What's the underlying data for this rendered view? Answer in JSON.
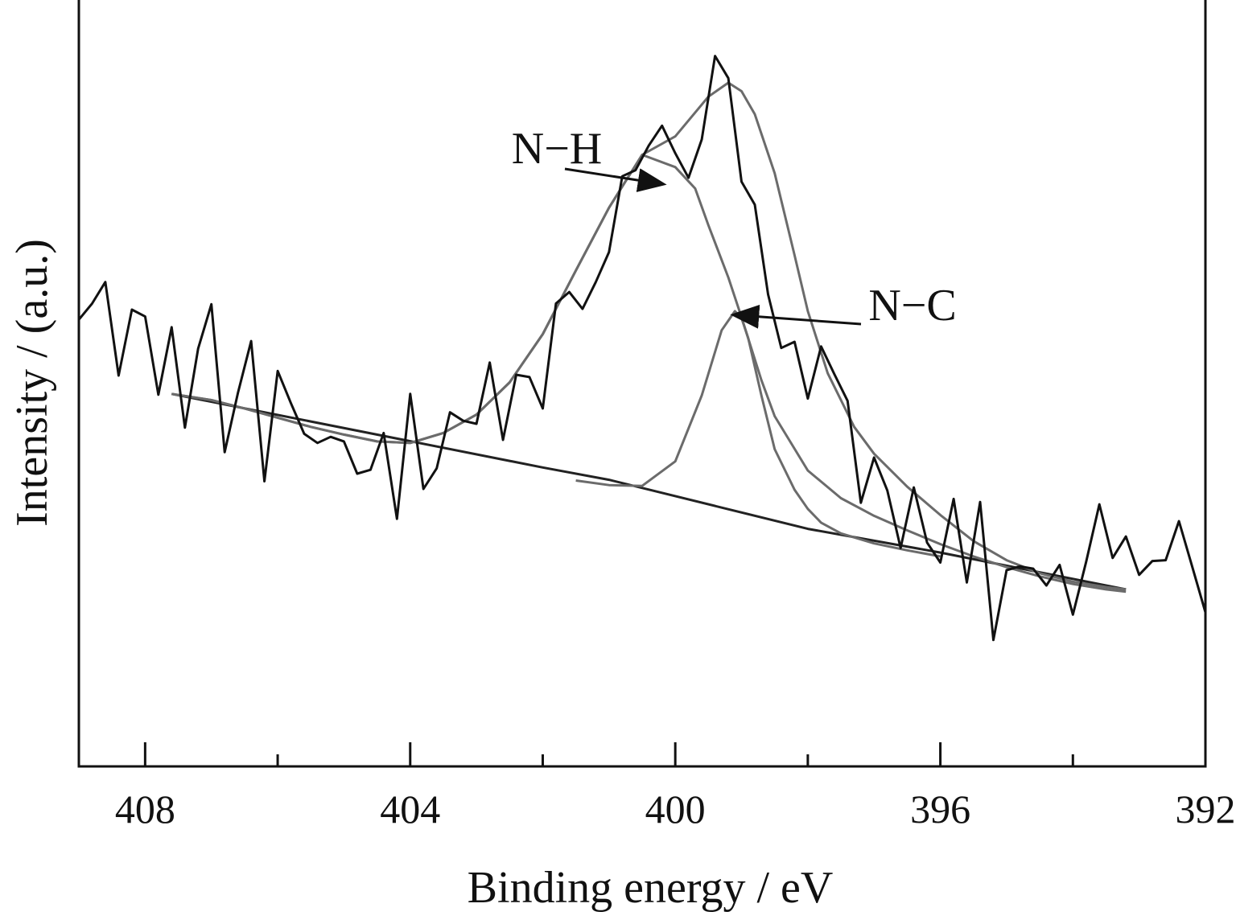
{
  "chart_data": {
    "type": "line",
    "title": "",
    "xlabel": "Binding energy / eV",
    "ylabel": "Intensity / (a.u.)",
    "xlim": [
      409,
      392
    ],
    "x_reversed": true,
    "ylim": [
      0,
      100
    ],
    "y_ticks_shown": false,
    "grid": false,
    "legend": "none",
    "x_ticks": [
      408,
      404,
      400,
      396,
      392
    ],
    "x_minor_ticks": [
      406,
      402,
      398,
      394
    ],
    "colors": {
      "raw": "#111111",
      "fit": "#6b6b6b",
      "frame": "#111111"
    },
    "series": [
      {
        "role": "raw",
        "x": [
          409.0,
          408.8,
          408.6,
          408.4,
          408.2,
          408.0,
          407.8,
          407.6,
          407.4,
          407.2,
          407.0,
          406.8,
          406.6,
          406.4,
          406.2,
          406.0,
          405.8,
          405.6,
          405.4,
          405.2,
          405.0,
          404.8,
          404.6,
          404.4,
          404.2,
          404.0,
          403.8,
          403.6,
          403.4,
          403.2,
          403.0,
          402.8,
          402.6,
          402.4,
          402.2,
          402.0,
          401.8,
          401.6,
          401.4,
          401.2,
          401.0,
          400.8,
          400.6,
          400.4,
          400.2,
          400.0,
          399.8,
          399.6,
          399.4,
          399.2,
          399.0,
          398.8,
          398.6,
          398.4,
          398.2,
          398.0,
          397.8,
          397.6,
          397.4,
          397.2,
          397.0,
          396.8,
          396.6,
          396.4,
          396.2,
          396.0,
          395.8,
          395.6,
          395.4,
          395.2,
          395.0,
          394.8,
          394.6,
          394.4,
          394.2,
          394.0,
          393.8,
          393.6,
          393.4,
          393.2,
          393.0,
          392.8,
          392.6,
          392.4,
          392.2,
          392.0
        ],
        "y": [
          58.3,
          60.4,
          63.2,
          51.0,
          59.6,
          58.7,
          48.5,
          57.3,
          44.2,
          54.5,
          60.3,
          41.0,
          48.7,
          55.5,
          37.2,
          51.6,
          47.4,
          43.4,
          42.2,
          43.0,
          42.4,
          38.2,
          38.7,
          43.5,
          32.3,
          48.6,
          36.2,
          38.9,
          46.2,
          45.1,
          44.7,
          52.7,
          42.6,
          51.1,
          50.8,
          46.7,
          60.4,
          61.9,
          59.7,
          63.2,
          67.1,
          77.0,
          77.8,
          81.0,
          83.6,
          80.0,
          76.8,
          81.8,
          92.7,
          89.8,
          76.3,
          73.3,
          61.6,
          54.6,
          55.4,
          48.0,
          54.8,
          51.2,
          47.7,
          34.4,
          40.3,
          36.0,
          28.5,
          36.4,
          29.2,
          26.6,
          34.9,
          24.0,
          34.5,
          16.5,
          25.6,
          26.1,
          25.8,
          23.6,
          26.3,
          19.8,
          26.7,
          34.2,
          27.2,
          30.0,
          25.0,
          26.8,
          26.9,
          32.0,
          26.1,
          20.1
        ]
      },
      {
        "role": "envelope",
        "x": [
          407.6,
          407.0,
          406.5,
          406.0,
          405.5,
          405.0,
          404.5,
          404.0,
          403.5,
          403.0,
          402.5,
          402.0,
          401.5,
          401.0,
          400.5,
          400.0,
          399.5,
          399.2,
          399.0,
          398.8,
          398.5,
          398.2,
          398.0,
          397.7,
          397.3,
          397.0,
          396.5,
          396.0,
          395.5,
          395.0,
          394.5,
          394.0,
          393.5,
          393.2
        ],
        "y": [
          48.6,
          47.8,
          46.7,
          45.5,
          44.3,
          43.3,
          42.4,
          42.2,
          43.5,
          45.9,
          50.1,
          56.4,
          64.7,
          72.9,
          79.8,
          82.2,
          87.4,
          89.2,
          88.1,
          85.1,
          77.4,
          66.7,
          59.4,
          51.3,
          44.3,
          40.8,
          36.5,
          32.8,
          29.4,
          26.9,
          25.2,
          24.1,
          23.4,
          23.1
        ]
      },
      {
        "role": "component",
        "label": "N−H",
        "x": [
          407.6,
          407.0,
          406.5,
          406.0,
          405.5,
          405.0,
          404.5,
          404.0,
          403.5,
          403.0,
          402.5,
          402.0,
          401.5,
          401.0,
          400.5,
          400.0,
          399.7,
          399.5,
          399.2,
          399.0,
          398.7,
          398.5,
          398.0,
          397.5,
          397.0,
          396.5,
          396.0,
          395.5,
          395.0,
          394.5,
          394.0,
          393.5,
          393.2
        ],
        "y": [
          48.6,
          47.8,
          46.7,
          45.5,
          44.3,
          43.3,
          42.4,
          42.2,
          43.5,
          45.9,
          50.1,
          56.4,
          64.7,
          72.9,
          79.8,
          78.2,
          75.4,
          70.6,
          63.8,
          58.6,
          50.4,
          45.7,
          38.6,
          35.0,
          32.7,
          30.8,
          29.0,
          27.4,
          26.0,
          24.8,
          23.8,
          23.1,
          22.8
        ]
      },
      {
        "role": "component",
        "label": "N−C",
        "x": [
          401.5,
          401.0,
          400.5,
          400.0,
          399.6,
          399.3,
          399.1,
          399.0,
          398.9,
          398.7,
          398.5,
          398.2,
          398.0,
          397.8,
          397.5,
          397.0,
          396.5,
          396.0
        ],
        "y": [
          37.3,
          36.7,
          36.6,
          39.8,
          48.4,
          56.9,
          59.4,
          58.5,
          55.9,
          48.4,
          41.4,
          36.1,
          33.6,
          31.8,
          30.4,
          29.1,
          28.2,
          27.4
        ]
      },
      {
        "role": "baseline",
        "x": [
          407.6,
          402.0,
          401.0,
          398.0,
          396.0,
          393.2
        ],
        "y": [
          48.6,
          39.0,
          37.4,
          31.0,
          27.9,
          23.1
        ]
      }
    ],
    "annotations": [
      {
        "text": "N−H",
        "points_to": [
          400.2,
          76.0
        ]
      },
      {
        "text": "N−C",
        "points_to": [
          399.1,
          58.9
        ]
      }
    ]
  }
}
